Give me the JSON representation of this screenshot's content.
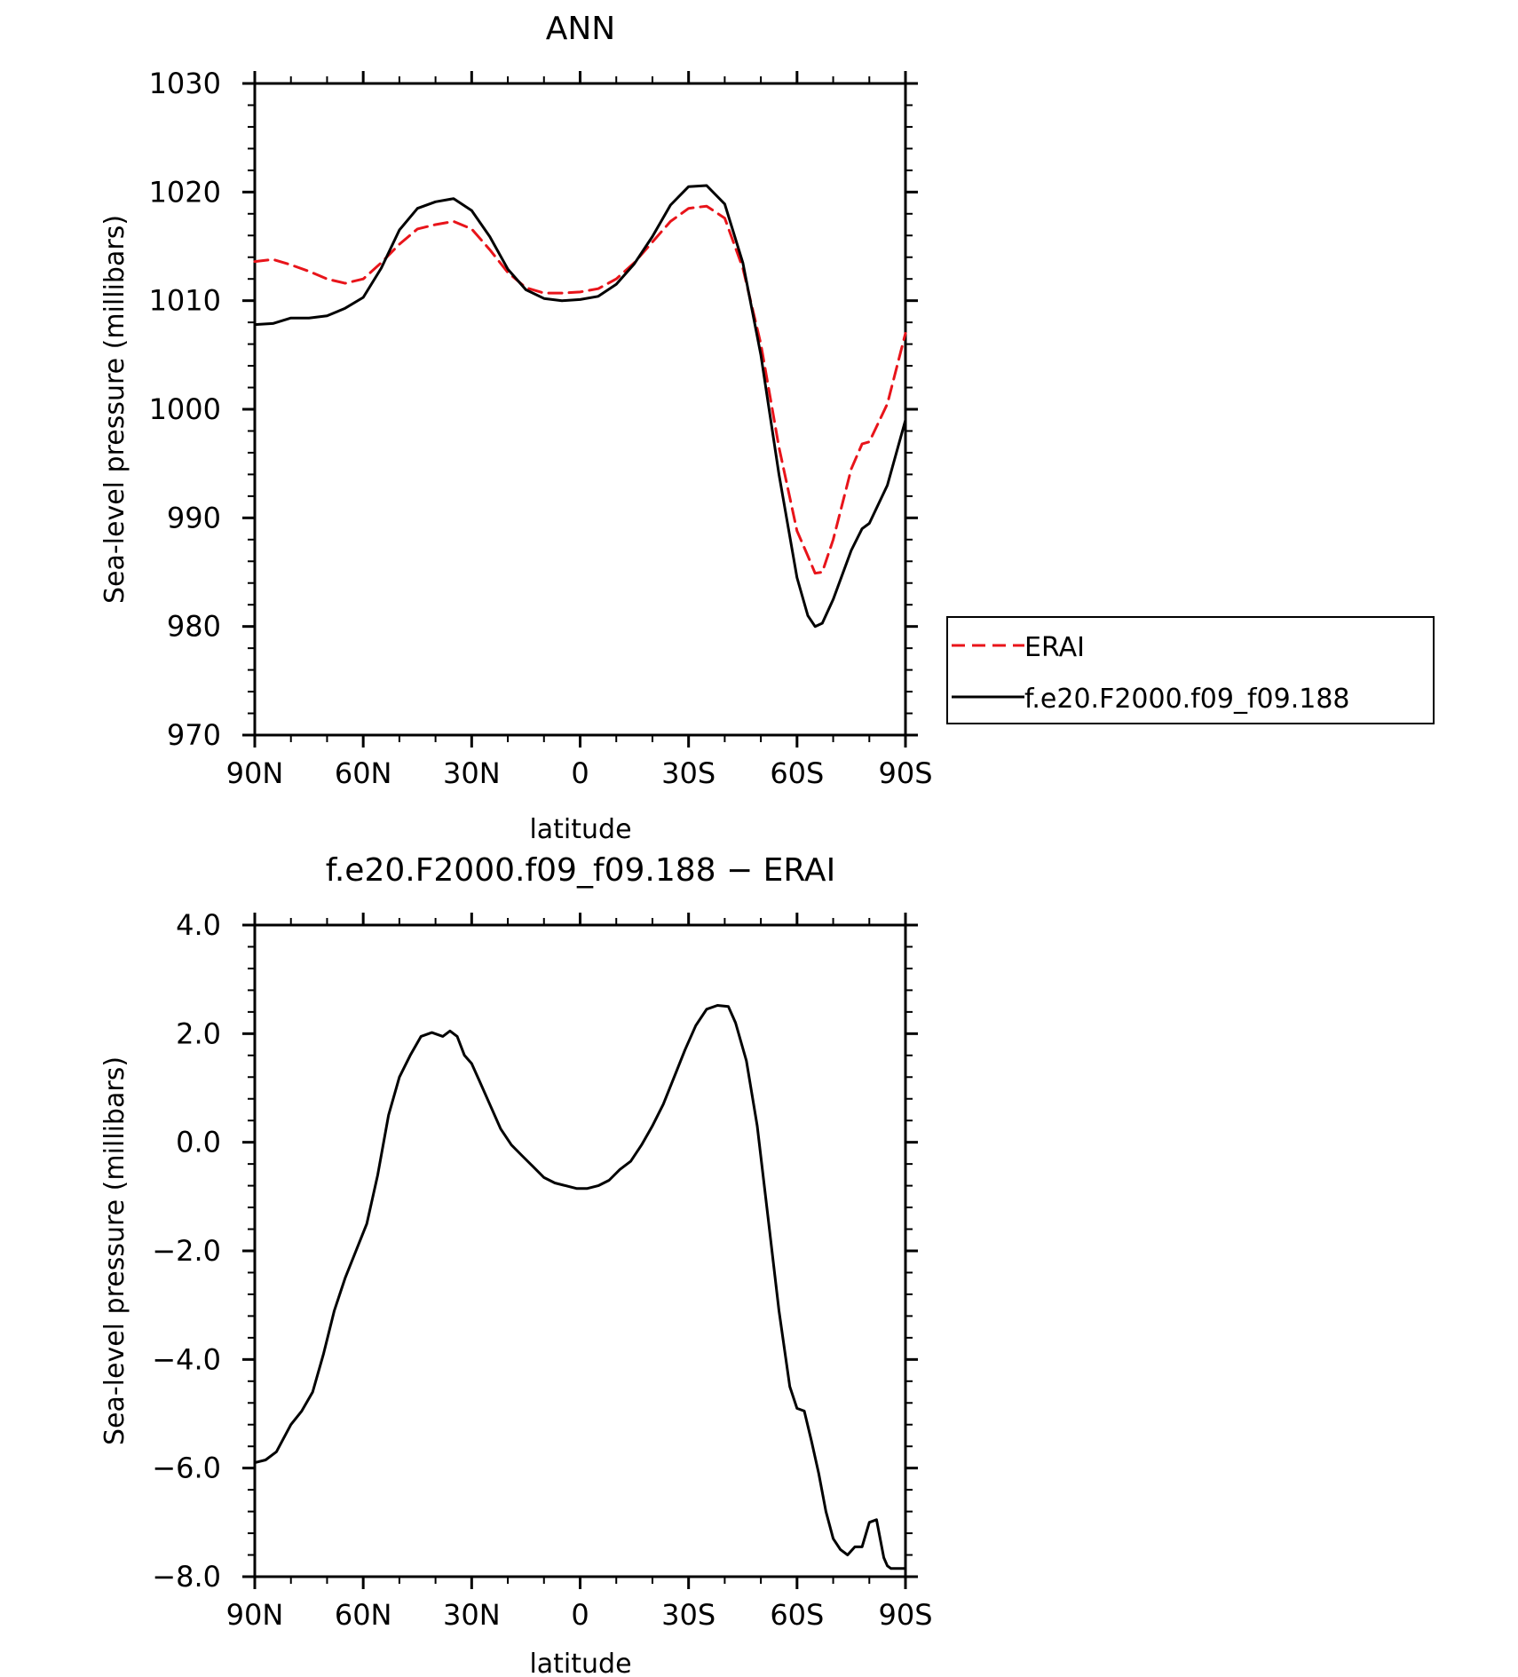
{
  "chart_data": [
    {
      "type": "line",
      "title": "ANN",
      "xlabel": "latitude",
      "ylabel": "Sea-level pressure (millibars)",
      "xlim": [
        90,
        -90
      ],
      "ylim": [
        970,
        1030
      ],
      "x_ticks": [
        90,
        60,
        30,
        0,
        -30,
        -60,
        -90
      ],
      "x_tick_labels": [
        "90N",
        "60N",
        "30N",
        "0",
        "30S",
        "60S",
        "90S"
      ],
      "y_ticks": [
        970,
        980,
        990,
        1000,
        1010,
        1020,
        1030
      ],
      "y_tick_labels": [
        "970",
        "980",
        "990",
        "1000",
        "1010",
        "1020",
        "1030"
      ],
      "legend_position": "right",
      "series": [
        {
          "name": "ERAI",
          "color": "#e8141a",
          "dash": true,
          "x": [
            90,
            85,
            80,
            75,
            70,
            65,
            60,
            55,
            50,
            45,
            40,
            35,
            30,
            25,
            20,
            15,
            10,
            5,
            0,
            -5,
            -10,
            -15,
            -20,
            -25,
            -30,
            -35,
            -40,
            -45,
            -50,
            -55,
            -60,
            -63,
            -65,
            -67,
            -70,
            -75,
            -78,
            -80,
            -85,
            -90
          ],
          "values": [
            1013.6,
            1013.8,
            1013.3,
            1012.7,
            1012.0,
            1011.6,
            1012.0,
            1013.5,
            1015.2,
            1016.6,
            1017.0,
            1017.3,
            1016.6,
            1014.7,
            1012.6,
            1011.2,
            1010.7,
            1010.7,
            1010.8,
            1011.1,
            1012.0,
            1013.5,
            1015.4,
            1017.3,
            1018.5,
            1018.7,
            1017.6,
            1013.0,
            1006.0,
            996.5,
            988.8,
            986.5,
            984.9,
            985.0,
            988.0,
            994.5,
            996.8,
            997.0,
            1000.5,
            1007.0
          ]
        },
        {
          "name": "f.e20.F2000.f09_f09.188",
          "color": "#000000",
          "dash": false,
          "x": [
            90,
            85,
            80,
            75,
            70,
            65,
            60,
            55,
            50,
            45,
            40,
            35,
            30,
            25,
            20,
            15,
            10,
            5,
            0,
            -5,
            -10,
            -15,
            -20,
            -25,
            -30,
            -35,
            -40,
            -45,
            -50,
            -55,
            -60,
            -63,
            -65,
            -67,
            -70,
            -75,
            -78,
            -80,
            -85,
            -90
          ],
          "values": [
            1007.8,
            1007.9,
            1008.4,
            1008.4,
            1008.6,
            1009.3,
            1010.3,
            1013.0,
            1016.5,
            1018.5,
            1019.1,
            1019.4,
            1018.3,
            1015.9,
            1012.9,
            1011.0,
            1010.2,
            1010.0,
            1010.1,
            1010.4,
            1011.5,
            1013.4,
            1015.9,
            1018.8,
            1020.5,
            1020.6,
            1018.9,
            1013.5,
            1005.0,
            994.0,
            984.5,
            981.0,
            980.0,
            980.3,
            982.5,
            987.0,
            989.0,
            989.5,
            993.0,
            999.0
          ]
        }
      ]
    },
    {
      "type": "line",
      "title": "f.e20.F2000.f09_f09.188 − ERAI",
      "xlabel": "latitude",
      "ylabel": "Sea-level pressure (millibars)",
      "xlim": [
        90,
        -90
      ],
      "ylim": [
        -8,
        4
      ],
      "x_ticks": [
        90,
        60,
        30,
        0,
        -30,
        -60,
        -90
      ],
      "x_tick_labels": [
        "90N",
        "60N",
        "30N",
        "0",
        "30S",
        "60S",
        "90S"
      ],
      "y_ticks": [
        -8,
        -6,
        -4,
        -2,
        0,
        2,
        4
      ],
      "y_tick_labels": [
        "−8.0",
        "−6.0",
        "−4.0",
        "−2.0",
        "0.0",
        "2.0",
        "4.0"
      ],
      "series": [
        {
          "color": "#000000",
          "dash": false,
          "x": [
            90,
            87,
            84,
            80,
            77,
            74,
            71,
            68,
            65,
            62,
            59,
            56,
            53,
            50,
            47,
            44,
            41,
            38,
            36,
            34,
            32,
            30,
            28,
            25,
            22,
            19,
            16,
            13,
            10,
            7,
            4,
            1,
            -2,
            -5,
            -8,
            -11,
            -14,
            -17,
            -20,
            -23,
            -26,
            -29,
            -32,
            -35,
            -38,
            -41,
            -43,
            -46,
            -49,
            -52,
            -55,
            -58,
            -60,
            -62,
            -64,
            -66,
            -68,
            -70,
            -72,
            -74,
            -76,
            -78,
            -80,
            -82,
            -84,
            -85,
            -86,
            -88,
            -90
          ],
          "values": [
            -5.9,
            -5.85,
            -5.7,
            -5.2,
            -4.95,
            -4.6,
            -3.9,
            -3.1,
            -2.5,
            -2.0,
            -1.5,
            -0.6,
            0.5,
            1.2,
            1.6,
            1.95,
            2.02,
            1.95,
            2.05,
            1.95,
            1.6,
            1.45,
            1.15,
            0.7,
            0.25,
            -0.05,
            -0.25,
            -0.45,
            -0.65,
            -0.75,
            -0.8,
            -0.85,
            -0.85,
            -0.8,
            -0.7,
            -0.5,
            -0.35,
            -0.05,
            0.3,
            0.7,
            1.2,
            1.7,
            2.15,
            2.45,
            2.52,
            2.5,
            2.2,
            1.5,
            0.3,
            -1.4,
            -3.1,
            -4.5,
            -4.9,
            -4.95,
            -5.5,
            -6.1,
            -6.8,
            -7.3,
            -7.5,
            -7.6,
            -7.45,
            -7.45,
            -7.0,
            -6.95,
            -7.65,
            -7.8,
            -7.85,
            -7.85,
            -7.85
          ]
        }
      ]
    }
  ]
}
